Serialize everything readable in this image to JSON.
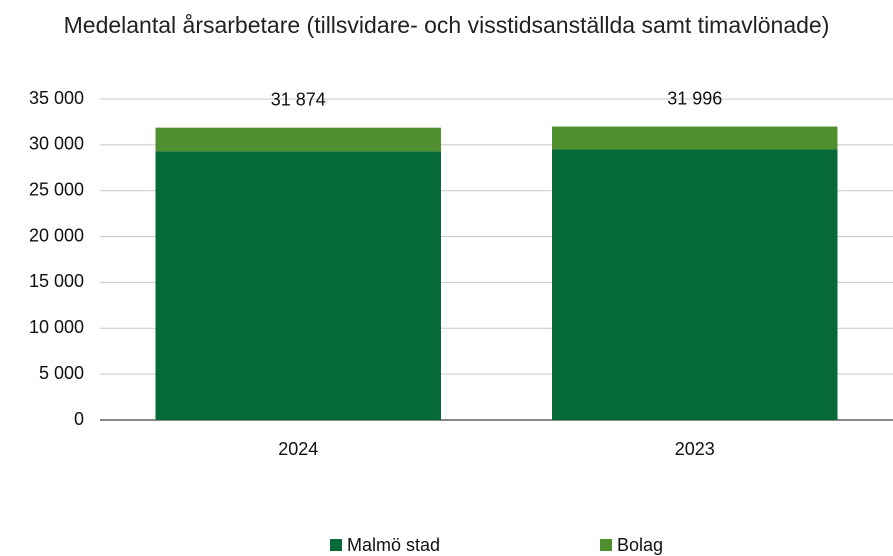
{
  "chart_data": {
    "type": "stacked-bar",
    "title": "Medelantal årsarbetare (tillsvidare- och visstidsanställda samt timavlönade)",
    "categories": [
      "2024",
      "2023"
    ],
    "series": [
      {
        "name": "Malmö stad",
        "color": "#066a38",
        "values": [
          29300,
          29500
        ]
      },
      {
        "name": "Bolag",
        "color": "#4f8f2f",
        "values": [
          2574,
          2496
        ]
      }
    ],
    "totals": [
      31874,
      31996
    ],
    "total_labels": [
      "31 874",
      "31 996"
    ],
    "ylim": [
      0,
      35000
    ],
    "yticks": [
      0,
      {
        "value": 5000,
        "label": "5 000"
      },
      {
        "value": 10000,
        "label": "10 000"
      },
      {
        "value": 15000,
        "label": "15 000"
      },
      {
        "value": 20000,
        "label": "20 000"
      },
      {
        "value": 25000,
        "label": "25 000"
      },
      {
        "value": 30000,
        "label": "30 000"
      },
      {
        "value": 35000,
        "label": "35 000"
      }
    ],
    "grid": true,
    "legend": "bottom"
  }
}
